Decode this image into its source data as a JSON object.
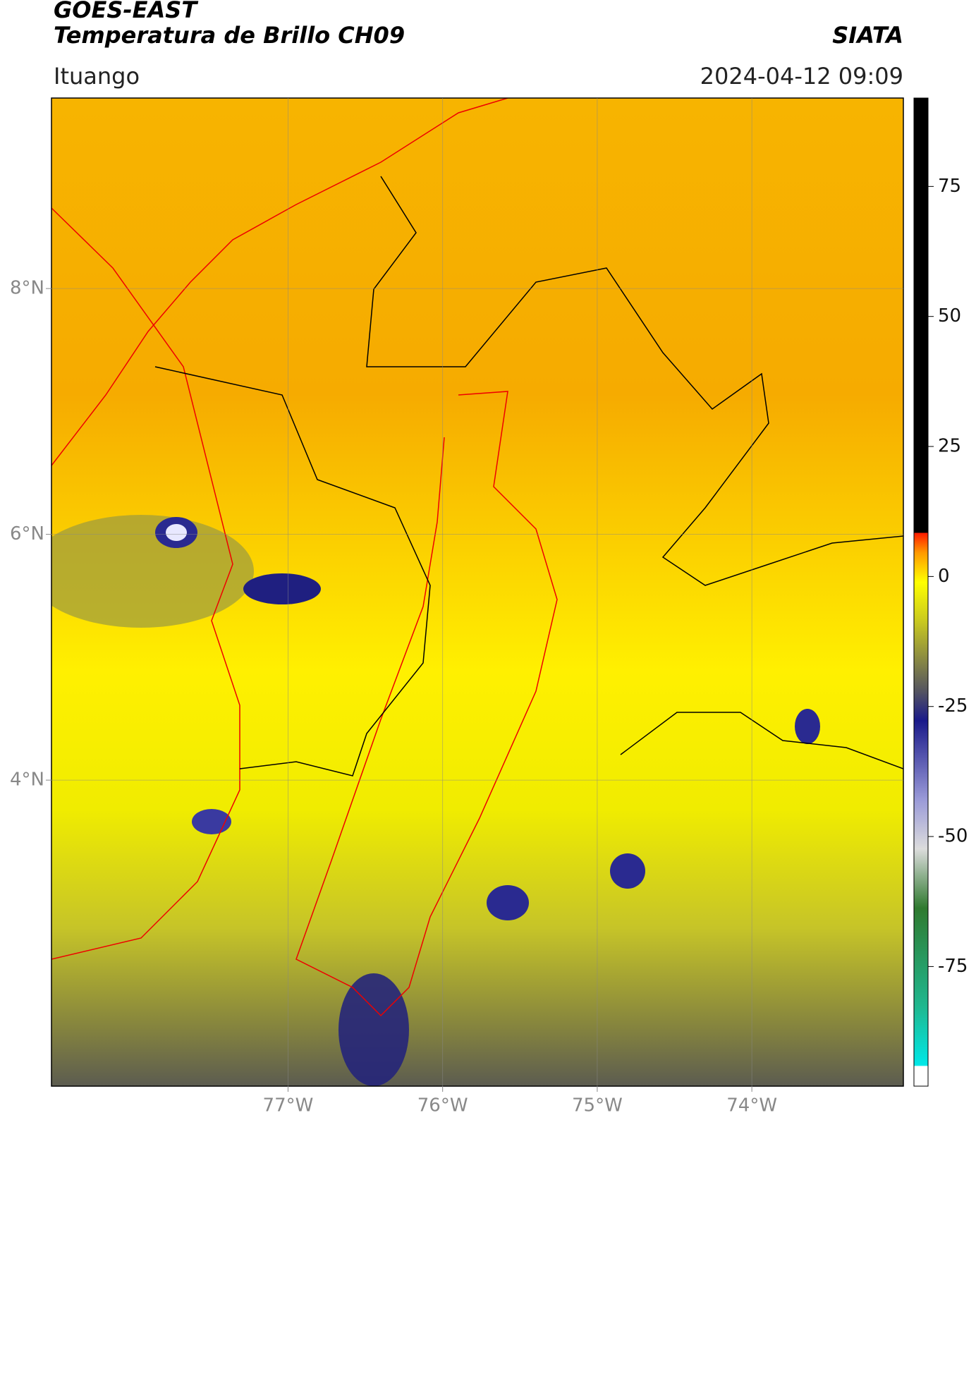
{
  "header": {
    "title": "GOES-EAST",
    "subtitle": "Temperatura de Brillo CH09",
    "source": "SIATA",
    "location": "Ituango",
    "datetime": "2024-04-12 09:09"
  },
  "chart_data": {
    "type": "map",
    "xlim": [
      -78.53,
      -73.02
    ],
    "ylim": [
      1.51,
      9.55
    ],
    "xticks": [
      {
        "value": -77,
        "label": "77°W"
      },
      {
        "value": -76,
        "label": "76°W"
      },
      {
        "value": -75,
        "label": "75°W"
      },
      {
        "value": -74,
        "label": "74°W"
      }
    ],
    "yticks": [
      {
        "value": 4,
        "label": "4°N"
      },
      {
        "value": 6,
        "label": "6°N"
      },
      {
        "value": 8,
        "label": "8°N"
      }
    ],
    "grid": true,
    "colorbar": {
      "lim": [
        -98,
        92
      ],
      "ticks": [
        75,
        50,
        25,
        0,
        -25,
        -50,
        -75
      ]
    }
  }
}
